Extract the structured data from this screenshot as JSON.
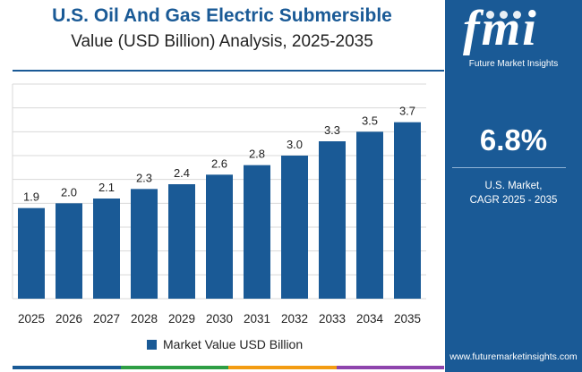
{
  "chart_data": {
    "type": "bar",
    "title": "U.S. Oil And Gas Electric Submersible",
    "subtitle": "Value (USD Billion) Analysis, 2025-2035",
    "categories": [
      "2025",
      "2026",
      "2027",
      "2028",
      "2029",
      "2030",
      "2031",
      "2032",
      "2033",
      "2034",
      "2035"
    ],
    "series": [
      {
        "name": "Market Value USD Billion",
        "values": [
          1.9,
          2.0,
          2.1,
          2.3,
          2.4,
          2.6,
          2.8,
          3.0,
          3.3,
          3.5,
          3.7
        ]
      }
    ],
    "ylim": [
      0,
      4.5
    ],
    "grid": true,
    "legend": "bottom-center",
    "xlabel": "",
    "ylabel": ""
  },
  "colors": {
    "bar": "#1a5a96",
    "grid": "#d9d9d9",
    "panel": "#1a5a96",
    "bottom_bar": [
      "#1a5a96",
      "#2e9e44",
      "#f39c12",
      "#8e44ad"
    ]
  },
  "panel": {
    "logo_text": "fmi",
    "logo_caption": "Future Market Insights",
    "cagr_value": "6.8%",
    "cagr_label_line1": "U.S. Market,",
    "cagr_label_line2": "CAGR 2025 - 2035",
    "website": "www.futuremarketinsights.com"
  }
}
